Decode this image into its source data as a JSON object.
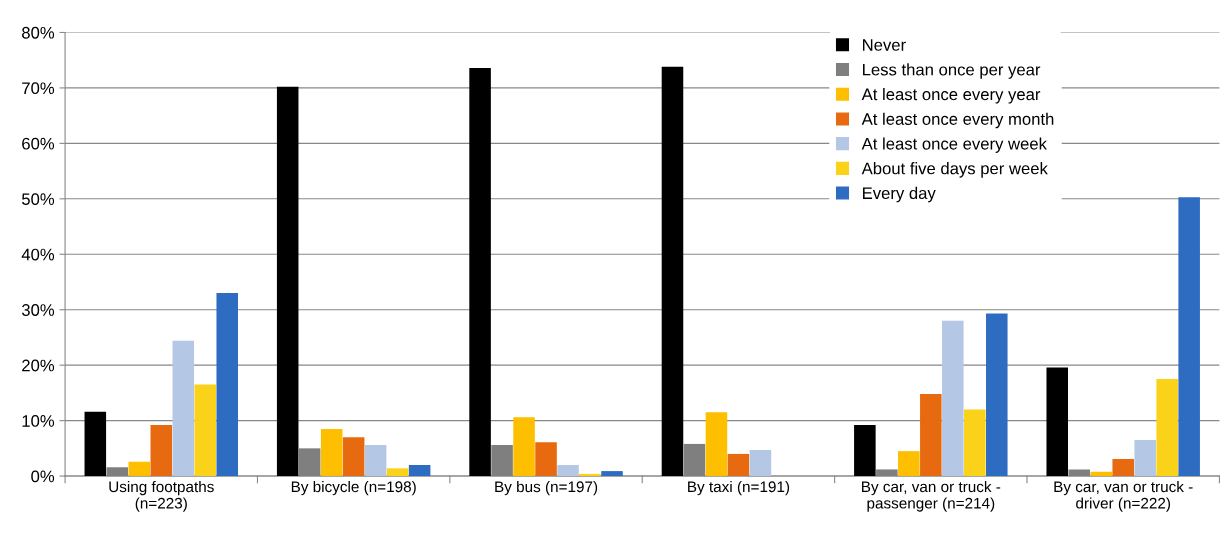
{
  "chart_data": {
    "type": "bar",
    "categories": [
      "Using footpaths\n(n=223)",
      "By bicycle (n=198)",
      "By bus (n=197)",
      "By taxi (n=191)",
      "By car, van or truck -\npassenger (n=214)",
      "By car, van or truck -\ndriver (n=222)"
    ],
    "series": [
      {
        "name": "Never",
        "color": "#000000",
        "values": [
          11.6,
          70.2,
          73.6,
          73.8,
          9.2,
          19.6
        ]
      },
      {
        "name": "Less than once per year",
        "color": "#7f7f7f",
        "values": [
          1.6,
          5.0,
          5.6,
          5.8,
          1.2,
          1.2
        ]
      },
      {
        "name": "At least once every year",
        "color": "#fdbf00",
        "values": [
          2.6,
          8.5,
          10.6,
          11.5,
          4.5,
          0.8
        ]
      },
      {
        "name": "At least once every month",
        "color": "#e86a10",
        "values": [
          9.2,
          7.0,
          6.1,
          4.0,
          14.8,
          3.1
        ]
      },
      {
        "name": "At least once every week",
        "color": "#b4c8e6",
        "values": [
          24.4,
          5.6,
          2.0,
          4.7,
          28.0,
          6.5
        ]
      },
      {
        "name": "About five days per week",
        "color": "#fad21a",
        "values": [
          16.5,
          1.4,
          0.4,
          0,
          12.0,
          17.5
        ]
      },
      {
        "name": "Every day",
        "color": "#2e6cc2",
        "values": [
          33.0,
          2.0,
          0.9,
          0,
          29.3,
          50.3
        ]
      }
    ],
    "ylim": [
      0,
      80
    ],
    "yticks": [
      {
        "value": 0,
        "label": "0%"
      },
      {
        "value": 10,
        "label": "10%"
      },
      {
        "value": 20,
        "label": "20%"
      },
      {
        "value": 30,
        "label": "30%"
      },
      {
        "value": 40,
        "label": "40%"
      },
      {
        "value": 50,
        "label": "50%"
      },
      {
        "value": 60,
        "label": "60%"
      },
      {
        "value": 70,
        "label": "70%"
      },
      {
        "value": 80,
        "label": "80%"
      }
    ],
    "grid": "y",
    "legend": "top right"
  }
}
